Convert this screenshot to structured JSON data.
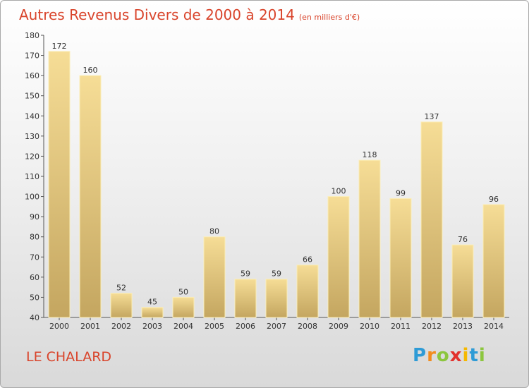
{
  "title": "Autres Revenus Divers de 2000 à 2014",
  "subtitle": "(en milliers d'€)",
  "place": "LE CHALARD",
  "logo": {
    "letters": [
      "P",
      "r",
      "o",
      "x",
      "i",
      "t",
      "i"
    ],
    "colors": [
      "#2e9bd6",
      "#f28c1e",
      "#8cc63e",
      "#e2312d",
      "#f5b800",
      "#2e9bd6",
      "#8cc63e"
    ]
  },
  "chart_data": {
    "type": "bar",
    "categories": [
      "2000",
      "2001",
      "2002",
      "2003",
      "2004",
      "2005",
      "2006",
      "2007",
      "2008",
      "2009",
      "2010",
      "2011",
      "2012",
      "2013",
      "2014"
    ],
    "values": [
      172,
      160,
      52,
      45,
      50,
      80,
      59,
      59,
      66,
      100,
      118,
      99,
      137,
      76,
      96
    ],
    "ylim": [
      40,
      180
    ],
    "yticks": [
      40,
      50,
      60,
      70,
      80,
      90,
      100,
      110,
      120,
      130,
      140,
      150,
      160,
      170,
      180
    ],
    "xlabel": "",
    "ylabel": "",
    "grid": false,
    "bar_color": "#e8cb7e"
  }
}
